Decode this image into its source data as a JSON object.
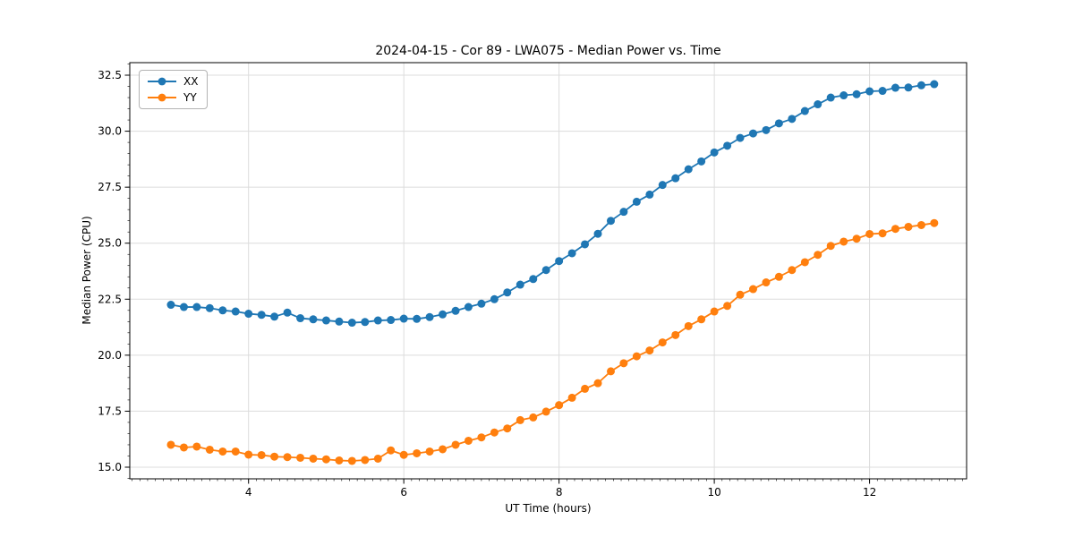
{
  "figure": {
    "title": "2024-04-15 - Cor 89 - LWA075 - Median Power vs. Time",
    "xlabel": "UT Time (hours)",
    "ylabel": "Median Power (CPU)"
  },
  "legend": {
    "items": [
      {
        "label": "XX",
        "color": "#1f77b4"
      },
      {
        "label": "YY",
        "color": "#ff7f0e"
      }
    ]
  },
  "chart_data": {
    "type": "line",
    "title": "2024-04-15 - Cor 89 - LWA075 - Median Power vs. Time",
    "xlabel": "UT Time (hours)",
    "ylabel": "Median Power (CPU)",
    "grid": true,
    "legend_position": "upper left",
    "marker": "o",
    "background": "#ffffff",
    "grid_color": "#dcdcdc",
    "spine_color": "#000000",
    "xlim": [
      2.47,
      13.25
    ],
    "ylim": [
      14.48,
      33.06
    ],
    "x_ticks": [
      4,
      6,
      8,
      10,
      12
    ],
    "x_tick_labels": [
      "4",
      "6",
      "8",
      "10",
      "12"
    ],
    "y_ticks": [
      15.0,
      17.5,
      20.0,
      22.5,
      25.0,
      27.5,
      30.0,
      32.5
    ],
    "y_tick_labels": [
      "15.0",
      "17.5",
      "20.0",
      "22.5",
      "25.0",
      "27.5",
      "30.0",
      "32.5"
    ],
    "x_minor_step": 0.1,
    "y_minor_step": 0.5,
    "x": [
      3.0,
      3.167,
      3.333,
      3.5,
      3.667,
      3.833,
      4.0,
      4.167,
      4.333,
      4.5,
      4.667,
      4.833,
      5.0,
      5.167,
      5.333,
      5.5,
      5.667,
      5.833,
      6.0,
      6.167,
      6.333,
      6.5,
      6.667,
      6.833,
      7.0,
      7.167,
      7.333,
      7.5,
      7.667,
      7.833,
      8.0,
      8.167,
      8.333,
      8.5,
      8.667,
      8.833,
      9.0,
      9.167,
      9.333,
      9.5,
      9.667,
      9.833,
      10.0,
      10.167,
      10.333,
      10.5,
      10.667,
      10.833,
      11.0,
      11.167,
      11.333,
      11.5,
      11.667,
      11.833,
      12.0,
      12.167,
      12.333,
      12.5,
      12.667,
      12.833
    ],
    "series": [
      {
        "name": "XX",
        "color": "#1f77b4",
        "values": [
          22.25,
          22.15,
          22.15,
          22.1,
          22.0,
          21.95,
          21.85,
          21.8,
          21.72,
          21.9,
          21.65,
          21.6,
          21.55,
          21.5,
          21.45,
          21.48,
          21.55,
          21.57,
          21.63,
          21.62,
          21.7,
          21.82,
          21.98,
          22.15,
          22.3,
          22.5,
          22.8,
          23.15,
          23.4,
          23.8,
          24.2,
          24.55,
          24.95,
          25.42,
          26.0,
          26.4,
          26.85,
          27.17,
          27.6,
          27.9,
          28.3,
          28.65,
          29.05,
          29.35,
          29.7,
          29.9,
          30.05,
          30.35,
          30.55,
          30.9,
          31.2,
          31.5,
          31.6,
          31.65,
          31.78,
          31.8,
          31.94,
          31.95,
          32.05,
          32.1
        ]
      },
      {
        "name": "YY",
        "color": "#ff7f0e",
        "values": [
          16.0,
          15.88,
          15.92,
          15.78,
          15.7,
          15.7,
          15.56,
          15.54,
          15.47,
          15.45,
          15.42,
          15.38,
          15.35,
          15.3,
          15.28,
          15.32,
          15.38,
          15.75,
          15.55,
          15.62,
          15.7,
          15.8,
          16.0,
          16.18,
          16.33,
          16.55,
          16.73,
          17.1,
          17.22,
          17.48,
          17.77,
          18.1,
          18.5,
          18.75,
          19.28,
          19.64,
          19.95,
          20.21,
          20.57,
          20.9,
          21.3,
          21.6,
          21.95,
          22.2,
          22.7,
          22.95,
          23.25,
          23.5,
          23.8,
          24.15,
          24.48,
          24.88,
          25.07,
          25.2,
          25.41,
          25.44,
          25.64,
          25.73,
          25.81,
          25.9
        ]
      }
    ]
  }
}
